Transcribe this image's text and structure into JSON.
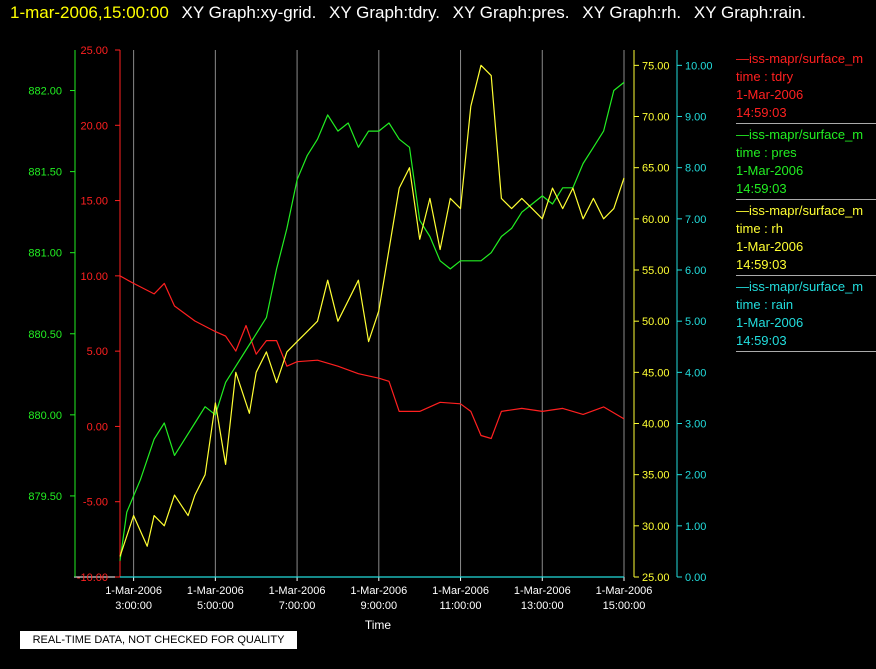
{
  "header": {
    "timestamp": "1-mar-2006,15:00:00",
    "graphs": [
      "XY Graph:xy-grid.",
      "XY Graph:tdry.",
      "XY Graph:pres.",
      "XY Graph:rh.",
      "XY Graph:rain."
    ]
  },
  "quality_note": "REAL-TIME DATA, NOT CHECKED FOR QUALITY",
  "legend": [
    {
      "source": "—iss-mapr/surface_m",
      "name": "time : tdry",
      "date": "1-Mar-2006",
      "time": "14:59:03",
      "color": "#ff2020"
    },
    {
      "source": "—iss-mapr/surface_m",
      "name": "time : pres",
      "date": "1-Mar-2006",
      "time": "14:59:03",
      "color": "#22ee22"
    },
    {
      "source": "—iss-mapr/surface_m",
      "name": "time : rh",
      "date": "1-Mar-2006",
      "time": "14:59:03",
      "color": "#ffff33"
    },
    {
      "source": "—iss-mapr/surface_m",
      "name": "time : rain",
      "date": "1-Mar-2006",
      "time": "14:59:03",
      "color": "#22dddd"
    }
  ],
  "chart_data": {
    "type": "line",
    "xlabel": "Time",
    "xlim": [
      "1-Mar-2006 2:40:00",
      "1-Mar-2006 15:00:00"
    ],
    "x_ticks": [
      {
        "date": "1-Mar-2006",
        "time": "3:00:00"
      },
      {
        "date": "1-Mar-2006",
        "time": "5:00:00"
      },
      {
        "date": "1-Mar-2006",
        "time": "7:00:00"
      },
      {
        "date": "1-Mar-2006",
        "time": "9:00:00"
      },
      {
        "date": "1-Mar-2006",
        "time": "11:00:00"
      },
      {
        "date": "1-Mar-2006",
        "time": "13:00:00"
      },
      {
        "date": "1-Mar-2006",
        "time": "15:00:00"
      }
    ],
    "grid": "vertical",
    "axes": {
      "tdry": {
        "range": [
          -10,
          25
        ],
        "ticks": [
          "-10.00",
          "-5.00",
          "0.00",
          "5.00",
          "10.00",
          "15.00",
          "20.00",
          "25.00"
        ],
        "color": "#ff2020"
      },
      "pres": {
        "range": [
          879.0,
          882.25
        ],
        "ticks": [
          "879.50",
          "880.00",
          "880.50",
          "881.00",
          "881.50",
          "882.00"
        ],
        "color": "#22ee22"
      },
      "rh": {
        "range": [
          25,
          76.5
        ],
        "ticks": [
          "25.00",
          "30.00",
          "35.00",
          "40.00",
          "45.00",
          "50.00",
          "55.00",
          "60.00",
          "65.00",
          "70.00",
          "75.00"
        ],
        "color": "#ffff33"
      },
      "rain": {
        "range": [
          0,
          10.3
        ],
        "ticks": [
          "0.00",
          "1.00",
          "2.00",
          "3.00",
          "4.00",
          "5.00",
          "6.00",
          "7.00",
          "8.00",
          "9.00",
          "10.00"
        ],
        "color": "#22dddd"
      }
    },
    "series": [
      {
        "name": "time : tdry",
        "axis": "tdry",
        "x": [
          "2:40",
          "3:00",
          "3:30",
          "3:45",
          "4:00",
          "4:30",
          "5:00",
          "5:15",
          "5:30",
          "5:45",
          "6:00",
          "6:15",
          "6:30",
          "6:45",
          "7:00",
          "7:30",
          "8:00",
          "8:30",
          "9:00",
          "9:15",
          "9:30",
          "10:00",
          "10:30",
          "11:00",
          "11:15",
          "11:30",
          "11:45",
          "12:00",
          "12:30",
          "13:00",
          "13:30",
          "14:00",
          "14:30",
          "15:00"
        ],
        "y": [
          10.0,
          9.5,
          8.8,
          9.5,
          8.0,
          7.0,
          6.3,
          6.0,
          5.0,
          6.7,
          4.8,
          5.7,
          5.7,
          4.0,
          4.3,
          4.4,
          4.0,
          3.5,
          3.2,
          3.0,
          1.0,
          1.0,
          1.6,
          1.5,
          1.0,
          -0.6,
          -0.8,
          1.0,
          1.2,
          1.0,
          1.2,
          0.8,
          1.3,
          0.5
        ]
      },
      {
        "name": "time : pres",
        "axis": "pres",
        "x": [
          "2:40",
          "2:50",
          "3:10",
          "3:30",
          "3:45",
          "4:00",
          "4:15",
          "4:30",
          "4:45",
          "5:00",
          "5:15",
          "5:30",
          "5:45",
          "6:00",
          "6:15",
          "6:30",
          "6:45",
          "7:00",
          "7:15",
          "7:30",
          "7:45",
          "8:00",
          "8:15",
          "8:30",
          "8:45",
          "9:00",
          "9:15",
          "9:30",
          "9:45",
          "10:00",
          "10:15",
          "10:30",
          "10:45",
          "11:00",
          "11:15",
          "11:30",
          "11:45",
          "12:00",
          "12:15",
          "12:30",
          "12:45",
          "13:00",
          "13:15",
          "13:30",
          "13:45",
          "14:00",
          "14:15",
          "14:30",
          "14:45",
          "15:00"
        ],
        "y": [
          879.1,
          879.4,
          879.6,
          879.85,
          879.95,
          879.75,
          879.85,
          879.95,
          880.05,
          880.0,
          880.2,
          880.3,
          880.4,
          880.5,
          880.6,
          880.9,
          881.15,
          881.45,
          881.6,
          881.7,
          881.85,
          881.75,
          881.8,
          881.65,
          881.75,
          881.75,
          881.8,
          881.7,
          881.65,
          881.2,
          881.1,
          880.95,
          880.9,
          880.95,
          880.95,
          880.95,
          881.0,
          881.1,
          881.15,
          881.25,
          881.3,
          881.35,
          881.3,
          881.4,
          881.4,
          881.55,
          881.65,
          881.75,
          882.0,
          882.05
        ]
      },
      {
        "name": "time : rh",
        "axis": "rh",
        "x": [
          "2:40",
          "2:50",
          "3:00",
          "3:20",
          "3:30",
          "3:45",
          "4:00",
          "4:20",
          "4:30",
          "4:45",
          "5:00",
          "5:15",
          "5:30",
          "5:40",
          "5:50",
          "6:00",
          "6:15",
          "6:30",
          "6:45",
          "7:00",
          "7:15",
          "7:30",
          "7:45",
          "8:00",
          "8:15",
          "8:30",
          "8:45",
          "9:00",
          "9:15",
          "9:30",
          "9:45",
          "10:00",
          "10:15",
          "10:30",
          "10:45",
          "11:00",
          "11:15",
          "11:30",
          "11:45",
          "12:00",
          "12:15",
          "12:30",
          "12:45",
          "13:00",
          "13:15",
          "13:30",
          "13:45",
          "14:00",
          "14:15",
          "14:30",
          "14:45",
          "15:00"
        ],
        "y": [
          27,
          29,
          31,
          28,
          31,
          30,
          33,
          31,
          33,
          35,
          42,
          36,
          45,
          43,
          41,
          45,
          47,
          44,
          47,
          48,
          49,
          50,
          54,
          50,
          52,
          54,
          48,
          51,
          57,
          63,
          65,
          58,
          62,
          57,
          62,
          61,
          71,
          75,
          74,
          62,
          61,
          62,
          61,
          60,
          63,
          61,
          63,
          60,
          62,
          60,
          61,
          64
        ]
      },
      {
        "name": "time : rain",
        "axis": "rain",
        "x": [
          "2:40",
          "15:00"
        ],
        "y": [
          0.0,
          0.0
        ]
      }
    ]
  }
}
